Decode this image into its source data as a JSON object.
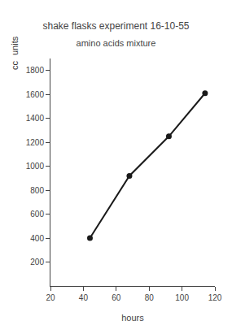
{
  "chart_data": {
    "type": "line",
    "title": "shake flasks experiment 16-10-55",
    "subtitle": "amino acids mixture",
    "xlabel": "hours",
    "ylabel": "units",
    "annotations": [
      "cc"
    ],
    "x": [
      44,
      68,
      92,
      114
    ],
    "values": [
      400,
      920,
      1250,
      1610
    ],
    "color": "#1a1a1a",
    "marker": "circle",
    "xlim": [
      20,
      120
    ],
    "ylim": [
      0,
      1900
    ],
    "xticks": [
      20,
      40,
      60,
      80,
      100,
      120
    ],
    "yticks": [
      200,
      400,
      600,
      800,
      1000,
      1200,
      1400,
      1600,
      1800
    ],
    "grid": false
  }
}
